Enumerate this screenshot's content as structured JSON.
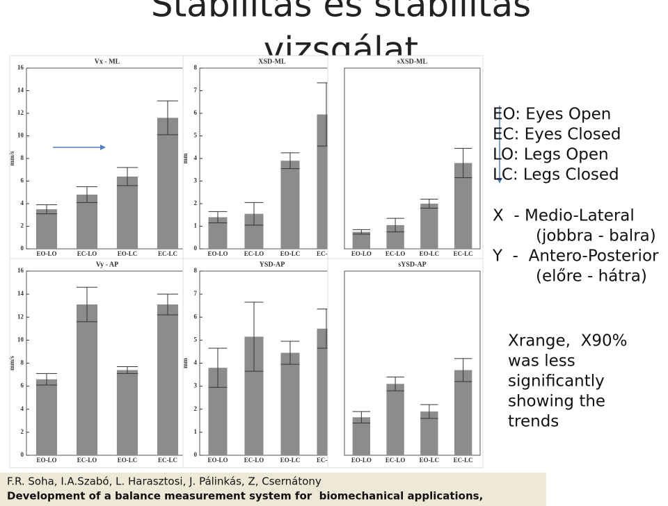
{
  "slide": {
    "title_line1": "Stabilitás és stabilitás",
    "title_line2": "vizsgálat",
    "notes": [
      "EO: Eyes Open",
      "EC: Eyes Closed",
      "LO: Legs Open",
      "LC: Legs Closed",
      "X  - Medio-Lateral",
      "(jobbra - balra)",
      "Y  -  Antero-Posterior",
      "(előre - hátra)"
    ],
    "finding": [
      "Xrange,  X90%",
      "was less",
      "significantly",
      "showing the",
      "trends"
    ],
    "reference": {
      "authors": "F.R. Soha, I.A.Szabó, L. Harasztosi, J. Pálinkás, Z, Csernátony",
      "title": "Development of a balance measurement system for  biomechanical applications,"
    }
  },
  "chart_data": [
    {
      "type": "bar",
      "title": "Vx - ML",
      "y_label": "mm/s",
      "categories": [
        "EO-LO",
        "EC-LO",
        "EO-LC",
        "EC-LC"
      ],
      "values": [
        3.5,
        4.8,
        6.4,
        11.6
      ],
      "errors": [
        0.4,
        0.7,
        0.8,
        1.5
      ],
      "color": "#8c8c8c",
      "ylim": [
        0,
        16
      ],
      "yticks": [
        0,
        2,
        4,
        6,
        8,
        10,
        12,
        14,
        16
      ]
    },
    {
      "type": "bar",
      "title": "XSD-ML",
      "y_label": "mm",
      "categories": [
        "EO-LO",
        "EC-LO",
        "EO-LC",
        "EC-LC"
      ],
      "values": [
        1.4,
        1.55,
        3.9,
        5.95
      ],
      "errors": [
        0.25,
        0.5,
        0.35,
        1.4
      ],
      "color": "#8c8c8c",
      "ylim": [
        0,
        8
      ],
      "yticks": [
        0,
        1,
        2,
        3,
        4,
        5,
        6,
        7,
        8
      ]
    },
    {
      "type": "bar",
      "title": "sXSD-ML",
      "categories": [
        "EO-LO",
        "EC-LO",
        "EO-LC",
        "EC-LC"
      ],
      "values": [
        0.75,
        1.05,
        2.0,
        3.8
      ],
      "errors": [
        0.1,
        0.3,
        0.2,
        0.65
      ],
      "color": "#8c8c8c",
      "ylim": [
        0,
        8
      ]
    },
    {
      "type": "bar",
      "title": "Vy - AP",
      "y_label": "mm/s",
      "categories": [
        "EO-LO",
        "EC-LO",
        "EO-LC",
        "EC-LC"
      ],
      "values": [
        6.6,
        13.1,
        7.4,
        13.1
      ],
      "errors": [
        0.5,
        1.5,
        0.3,
        0.9
      ],
      "color": "#8c8c8c",
      "ylim": [
        0,
        16
      ],
      "yticks": [
        0,
        2,
        4,
        6,
        8,
        10,
        12,
        14,
        16
      ]
    },
    {
      "type": "bar",
      "title": "YSD-AP",
      "y_label": "mm",
      "categories": [
        "EO-LO",
        "EC-LO",
        "EO-LC",
        "EC-LC"
      ],
      "values": [
        3.8,
        5.15,
        4.45,
        5.5
      ],
      "errors": [
        0.85,
        1.5,
        0.5,
        0.85
      ],
      "color": "#8c8c8c",
      "ylim": [
        0,
        8
      ],
      "yticks": [
        0,
        1,
        2,
        3,
        4,
        5,
        6,
        7,
        8
      ]
    },
    {
      "type": "bar",
      "title": "sYSD-AP",
      "categories": [
        "EO-LO",
        "EC-LO",
        "EO-LC",
        "EC-LC"
      ],
      "values": [
        1.65,
        3.1,
        1.9,
        3.7
      ],
      "errors": [
        0.25,
        0.3,
        0.3,
        0.5
      ],
      "color": "#8c8c8c",
      "ylim": [
        0,
        8
      ]
    }
  ]
}
